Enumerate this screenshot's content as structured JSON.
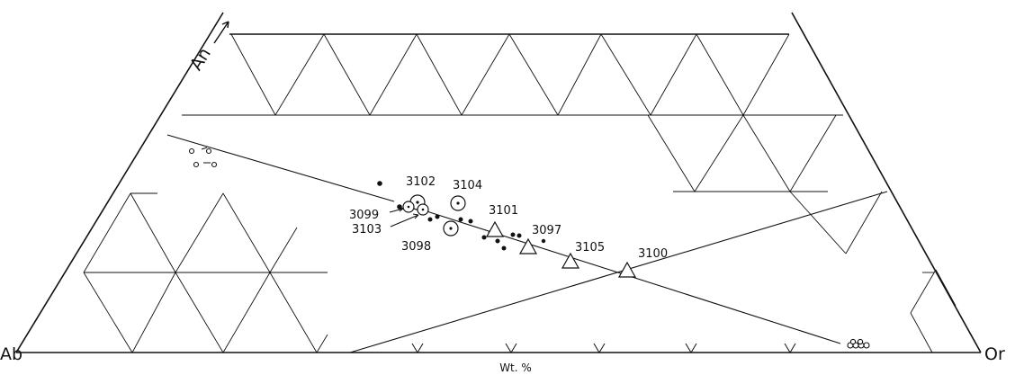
{
  "diagram": {
    "corner_labels": {
      "left": "Ab",
      "right": "Or",
      "top_axis": "An"
    },
    "axis_unit": "Wt. %",
    "samples": [
      {
        "id": "3102"
      },
      {
        "id": "3104"
      },
      {
        "id": "3101"
      },
      {
        "id": "3099"
      },
      {
        "id": "3103"
      },
      {
        "id": "3098"
      },
      {
        "id": "3097"
      },
      {
        "id": "3105"
      },
      {
        "id": "3100"
      }
    ]
  }
}
